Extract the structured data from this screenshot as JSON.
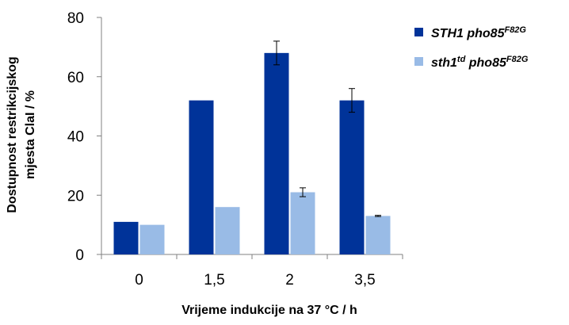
{
  "chart_data": {
    "type": "bar",
    "categories": [
      "0",
      "1,5",
      "2",
      "3,5"
    ],
    "series": [
      {
        "name_base": "STH1 pho85",
        "name_sup": "F82G",
        "color": "#003399",
        "values": [
          11,
          52,
          68,
          52
        ],
        "errors": [
          0,
          0,
          4,
          4
        ]
      },
      {
        "name_base": "sth1",
        "name_sup": "td",
        "name_rest": " pho85",
        "name_sup2": "F82G",
        "color": "#99bbe6",
        "values": [
          10,
          16,
          21,
          13
        ],
        "errors": [
          0,
          0,
          1.5,
          0.2
        ]
      }
    ],
    "ylabel_line1": "Dostupnost restrikcijskog",
    "ylabel_line2": "mjesta ClaI / %",
    "xlabel": "Vrijeme indukcije na 37 °C / h",
    "ylim": [
      0,
      80
    ],
    "yticks": [
      "0",
      "20",
      "40",
      "60",
      "80"
    ],
    "legend_position": "top-right",
    "grid": false
  }
}
